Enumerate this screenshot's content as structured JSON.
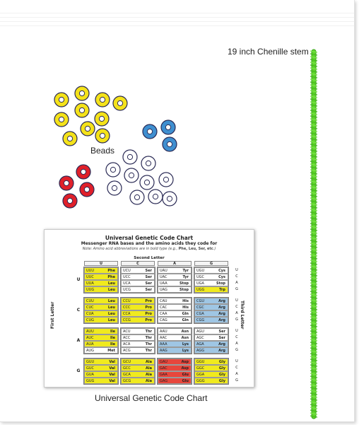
{
  "labels": {
    "stem": "19 inch Chenille stem",
    "beads": "Beads",
    "caption": "Universal Genetic Code Chart"
  },
  "colors": {
    "stem": "#5fd52a",
    "yellow_bead": "#f4e21a",
    "blue_bead": "#3f8fd0",
    "red_bead": "#e0202a",
    "clear_bead": "#ffffff",
    "bead_outline": "#2a2a55",
    "cell_yellow": "#f0ea1e",
    "cell_blue": "#9fc6e4",
    "cell_red": "#e7463c",
    "cell_white": "#ffffff"
  },
  "bead_groups": [
    {
      "color": "yellow",
      "count": 10
    },
    {
      "color": "blue",
      "count": 3
    },
    {
      "color": "red",
      "count": 4
    },
    {
      "color": "clear",
      "count": 10
    }
  ],
  "chart": {
    "title": "Universal Genetic Code Chart",
    "subtitle": "Messenger RNA bases and the amino acids they code for",
    "note_prefix": "Note: Amino acid abbreviations are in bold type (e.g., ",
    "note_bold": "Phe, Leu, Ser, etc",
    "note_suffix": ".)",
    "second_letter_label": "Second Letter",
    "first_letter_label": "First Letter",
    "third_letter_label": "Third Letter",
    "second_letters": [
      "U",
      "C",
      "A",
      "G"
    ],
    "third_letters": [
      "U",
      "C",
      "A",
      "G"
    ],
    "rows": [
      {
        "first": "U",
        "blocks": [
          [
            [
              "UUU",
              "Phe",
              "y"
            ],
            [
              "UUC",
              "Phe",
              "y"
            ],
            [
              "UUA",
              "Leu",
              "y"
            ],
            [
              "UUG",
              "Leu",
              "y"
            ]
          ],
          [
            [
              "UCU",
              "Ser",
              "w"
            ],
            [
              "UCC",
              "Ser",
              "w"
            ],
            [
              "UCA",
              "Ser",
              "w"
            ],
            [
              "UCG",
              "Ser",
              "w"
            ]
          ],
          [
            [
              "UAU",
              "Tyr",
              "w"
            ],
            [
              "UAC",
              "Tyr",
              "w"
            ],
            [
              "UAA",
              "Stop",
              "w"
            ],
            [
              "UAG",
              "Stop",
              "w"
            ]
          ],
          [
            [
              "UGU",
              "Cys",
              "w"
            ],
            [
              "UGC",
              "Cys",
              "w"
            ],
            [
              "UGA",
              "Stop",
              "w"
            ],
            [
              "UGG",
              "Trp",
              "y"
            ]
          ]
        ]
      },
      {
        "first": "C",
        "blocks": [
          [
            [
              "CUU",
              "Leu",
              "y"
            ],
            [
              "CUC",
              "Leu",
              "y"
            ],
            [
              "CUA",
              "Leu",
              "y"
            ],
            [
              "CUG",
              "Leu",
              "y"
            ]
          ],
          [
            [
              "CCU",
              "Pro",
              "y"
            ],
            [
              "CCC",
              "Pro",
              "y"
            ],
            [
              "CCA",
              "Pro",
              "y"
            ],
            [
              "CCG",
              "Pro",
              "y"
            ]
          ],
          [
            [
              "CAU",
              "His",
              "w"
            ],
            [
              "CAC",
              "His",
              "w"
            ],
            [
              "CAA",
              "Gln",
              "w"
            ],
            [
              "CAG",
              "Gln",
              "w"
            ]
          ],
          [
            [
              "CGU",
              "Arg",
              "b"
            ],
            [
              "CGC",
              "Arg",
              "b"
            ],
            [
              "CGA",
              "Arg",
              "b"
            ],
            [
              "CGG",
              "Arg",
              "b"
            ]
          ]
        ]
      },
      {
        "first": "A",
        "blocks": [
          [
            [
              "AUU",
              "Ile",
              "y"
            ],
            [
              "AUC",
              "Ile",
              "y"
            ],
            [
              "AUA",
              "Ile",
              "y"
            ],
            [
              "AUG",
              "Met",
              "w"
            ]
          ],
          [
            [
              "ACU",
              "Thr",
              "w"
            ],
            [
              "ACC",
              "Thr",
              "w"
            ],
            [
              "ACA",
              "Thr",
              "w"
            ],
            [
              "ACG",
              "Thr",
              "w"
            ]
          ],
          [
            [
              "AAU",
              "Asn",
              "w"
            ],
            [
              "AAC",
              "Asn",
              "w"
            ],
            [
              "AAA",
              "Lys",
              "b"
            ],
            [
              "AAG",
              "Lys",
              "b"
            ]
          ],
          [
            [
              "AGU",
              "Ser",
              "w"
            ],
            [
              "AGC",
              "Ser",
              "w"
            ],
            [
              "AGA",
              "Arg",
              "b"
            ],
            [
              "AGG",
              "Arg",
              "b"
            ]
          ]
        ]
      },
      {
        "first": "G",
        "blocks": [
          [
            [
              "GUU",
              "Val",
              "y"
            ],
            [
              "GUC",
              "Val",
              "y"
            ],
            [
              "GUA",
              "Val",
              "y"
            ],
            [
              "GUG",
              "Val",
              "y"
            ]
          ],
          [
            [
              "GCU",
              "Ala",
              "y"
            ],
            [
              "GCC",
              "Ala",
              "y"
            ],
            [
              "GCA",
              "Ala",
              "y"
            ],
            [
              "GCG",
              "Ala",
              "y"
            ]
          ],
          [
            [
              "GAU",
              "Asp",
              "r"
            ],
            [
              "GAC",
              "Asp",
              "r"
            ],
            [
              "GAA",
              "Glu",
              "r"
            ],
            [
              "GAG",
              "Glu",
              "r"
            ]
          ],
          [
            [
              "GGU",
              "Gly",
              "y"
            ],
            [
              "GGC",
              "Gly",
              "y"
            ],
            [
              "GGA",
              "Gly",
              "y"
            ],
            [
              "GGG",
              "Gly",
              "y"
            ]
          ]
        ]
      }
    ]
  }
}
